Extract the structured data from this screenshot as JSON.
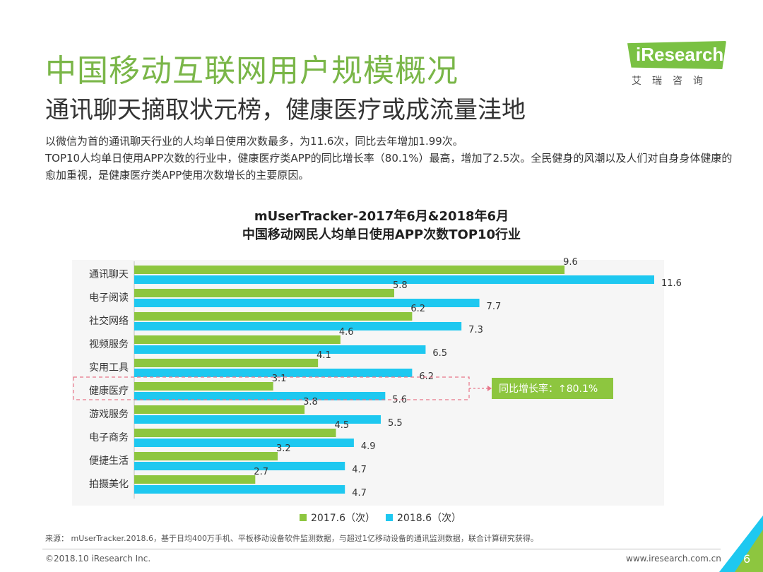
{
  "header": {
    "title": "中国移动互联网用户规模概况",
    "subtitle": "通讯聊天摘取状元榜，健康医疗或成流量洼地"
  },
  "logo": {
    "name": "iResearch",
    "subtitle": "艾瑞咨询"
  },
  "description": [
    "以微信为首的通讯聊天行业的人均单日使用次数最多，为11.6次，同比去年增加1.99次。",
    "TOP10人均单日使用APP次数的行业中，健康医疗类APP的同比增长率（80.1%）最高，增加了2.5次。全民健身的风潮以及人们对自身身体健康的愈加重视，是健康医疗类APP使用次数增长的主要原因。"
  ],
  "chart_data": {
    "type": "bar",
    "orientation": "horizontal",
    "title": "mUserTracker-2017年6月&2018年6月",
    "subtitle": "中国移动网民人均单日使用APP次数TOP10行业",
    "categories": [
      "通讯聊天",
      "电子阅读",
      "社交网络",
      "视频服务",
      "实用工具",
      "健康医疗",
      "游戏服务",
      "电子商务",
      "便捷生活",
      "拍摄美化"
    ],
    "series": [
      {
        "name": "2017.6（次）",
        "color": "#8dc63f",
        "values": [
          9.6,
          5.8,
          6.2,
          4.6,
          4.1,
          3.1,
          3.8,
          4.5,
          3.2,
          2.7
        ]
      },
      {
        "name": "2018.6（次）",
        "color": "#1ec8f0",
        "values": [
          11.6,
          7.7,
          7.3,
          6.5,
          6.2,
          5.6,
          5.5,
          4.9,
          4.7,
          4.7
        ]
      }
    ],
    "xlim": [
      0,
      11.6
    ],
    "legend": "bottom",
    "annotation": {
      "category": "健康医疗",
      "text": "同比增长率：↑80.1%",
      "bg_color": "#8dc63f"
    }
  },
  "footer": {
    "source": "来源： mUserTracker.2018.6，基于日均400万手机、平板移动设备软件监测数据，与超过1亿移动设备的通讯监测数据，联合计算研究获得。",
    "copyright": "©2018.10 iResearch Inc.",
    "website": "www.iresearch.com.cn",
    "page": "6"
  }
}
